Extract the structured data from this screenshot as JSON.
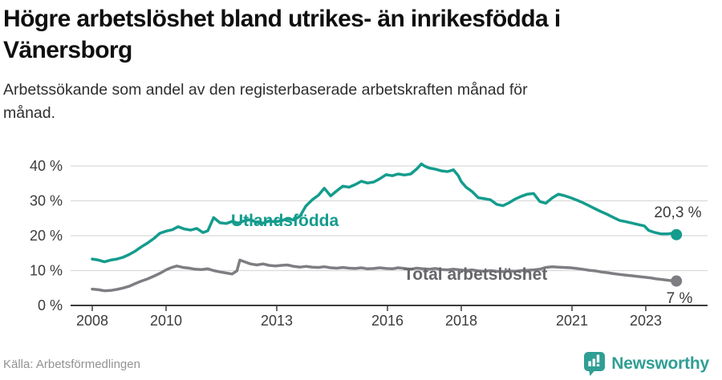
{
  "header": {
    "title_lines": [
      "Högre arbetslöshet bland utrikes- än inrikesfödda i",
      "Vänersborg"
    ],
    "subtitle_lines": [
      "Arbetssökande som andel av den registerbaserade arbetskraften månad för",
      "månad."
    ]
  },
  "chart_data": {
    "type": "line",
    "title": "Högre arbetslöshet bland utrikes- än inrikesfödda i Vänersborg",
    "subtitle": "Arbetssökande som andel av den registerbaserade arbetskraften månad för månad.",
    "xlabel": "",
    "ylabel": "",
    "x_unit": "year (monthly series)",
    "y_unit": "%",
    "xlim": [
      2007.5,
      2024.2
    ],
    "ylim": [
      0,
      42
    ],
    "grid": "horizontal",
    "grid_color": "#dadada",
    "axis_color": "#3c3c3c",
    "tick_label_color": "#3c3c3c",
    "annotation_color": "#3a3a3a",
    "x_ticks": [
      {
        "year": 2008,
        "label": "2008"
      },
      {
        "year": 2010,
        "label": "2010"
      },
      {
        "year": 2013,
        "label": "2013"
      },
      {
        "year": 2016,
        "label": "2016"
      },
      {
        "year": 2018,
        "label": "2018"
      },
      {
        "year": 2021,
        "label": "2021"
      },
      {
        "year": 2023,
        "label": "2023"
      }
    ],
    "y_ticks": [
      {
        "value": 0,
        "label": "0 %"
      },
      {
        "value": 10,
        "label": "10 %"
      },
      {
        "value": 20,
        "label": "20 %"
      },
      {
        "value": 30,
        "label": "30 %"
      },
      {
        "value": 40,
        "label": "40 %"
      }
    ],
    "series": [
      {
        "name": "Utlandsfödda",
        "color": "#149c8d",
        "label_color": "#149c8d",
        "end_label": "20,3 %",
        "end_value": 20.3,
        "points": [
          [
            2008.0,
            13.3
          ],
          [
            2008.17,
            13.0
          ],
          [
            2008.33,
            12.5
          ],
          [
            2008.5,
            13.0
          ],
          [
            2008.67,
            13.3
          ],
          [
            2008.83,
            13.8
          ],
          [
            2009.0,
            14.6
          ],
          [
            2009.17,
            15.6
          ],
          [
            2009.33,
            16.8
          ],
          [
            2009.5,
            17.9
          ],
          [
            2009.67,
            19.2
          ],
          [
            2009.83,
            20.7
          ],
          [
            2010.0,
            21.3
          ],
          [
            2010.17,
            21.7
          ],
          [
            2010.33,
            22.6
          ],
          [
            2010.5,
            21.9
          ],
          [
            2010.67,
            21.6
          ],
          [
            2010.83,
            22.1
          ],
          [
            2011.0,
            20.9
          ],
          [
            2011.13,
            21.4
          ],
          [
            2011.29,
            25.2
          ],
          [
            2011.46,
            23.7
          ],
          [
            2011.63,
            23.5
          ],
          [
            2011.79,
            24.1
          ],
          [
            2011.96,
            23.6
          ],
          [
            2012.13,
            24.3
          ],
          [
            2012.29,
            24.6
          ],
          [
            2012.46,
            23.8
          ],
          [
            2012.63,
            23.6
          ],
          [
            2012.79,
            24.2
          ],
          [
            2012.96,
            24.0
          ],
          [
            2013.13,
            24.3
          ],
          [
            2013.29,
            24.9
          ],
          [
            2013.46,
            24.5
          ],
          [
            2013.63,
            25.6
          ],
          [
            2013.79,
            28.5
          ],
          [
            2013.96,
            30.3
          ],
          [
            2014.13,
            31.6
          ],
          [
            2014.29,
            33.6
          ],
          [
            2014.46,
            31.4
          ],
          [
            2014.63,
            32.9
          ],
          [
            2014.79,
            34.2
          ],
          [
            2014.96,
            33.9
          ],
          [
            2015.13,
            34.7
          ],
          [
            2015.29,
            35.6
          ],
          [
            2015.46,
            35.1
          ],
          [
            2015.63,
            35.4
          ],
          [
            2015.79,
            36.3
          ],
          [
            2015.96,
            37.5
          ],
          [
            2016.13,
            37.2
          ],
          [
            2016.29,
            37.7
          ],
          [
            2016.46,
            37.4
          ],
          [
            2016.63,
            37.7
          ],
          [
            2016.79,
            39.1
          ],
          [
            2016.92,
            40.6
          ],
          [
            2017.0,
            40.0
          ],
          [
            2017.13,
            39.4
          ],
          [
            2017.29,
            39.1
          ],
          [
            2017.46,
            38.6
          ],
          [
            2017.63,
            38.4
          ],
          [
            2017.79,
            38.9
          ],
          [
            2017.92,
            37.2
          ],
          [
            2018.0,
            35.5
          ],
          [
            2018.13,
            33.9
          ],
          [
            2018.29,
            32.7
          ],
          [
            2018.46,
            30.9
          ],
          [
            2018.63,
            30.6
          ],
          [
            2018.79,
            30.3
          ],
          [
            2018.96,
            29.0
          ],
          [
            2019.13,
            28.6
          ],
          [
            2019.29,
            29.4
          ],
          [
            2019.46,
            30.5
          ],
          [
            2019.63,
            31.3
          ],
          [
            2019.79,
            31.9
          ],
          [
            2019.96,
            32.1
          ],
          [
            2020.13,
            29.8
          ],
          [
            2020.29,
            29.3
          ],
          [
            2020.46,
            30.8
          ],
          [
            2020.63,
            31.9
          ],
          [
            2020.79,
            31.5
          ],
          [
            2020.96,
            30.9
          ],
          [
            2021.13,
            30.2
          ],
          [
            2021.29,
            29.5
          ],
          [
            2021.46,
            28.6
          ],
          [
            2021.63,
            27.7
          ],
          [
            2021.79,
            26.9
          ],
          [
            2021.96,
            26.1
          ],
          [
            2022.13,
            25.2
          ],
          [
            2022.29,
            24.4
          ],
          [
            2022.46,
            24.0
          ],
          [
            2022.63,
            23.6
          ],
          [
            2022.79,
            23.2
          ],
          [
            2022.96,
            22.8
          ],
          [
            2023.08,
            21.5
          ],
          [
            2023.25,
            20.9
          ],
          [
            2023.42,
            20.5
          ],
          [
            2023.58,
            20.5
          ],
          [
            2023.71,
            20.7
          ],
          [
            2023.83,
            20.3
          ]
        ]
      },
      {
        "name": "Total arbetslöshet",
        "color": "#7e7e82",
        "label_color": "#67676b",
        "end_label": "7 %",
        "end_value": 7.0,
        "points": [
          [
            2008.0,
            4.7
          ],
          [
            2008.17,
            4.5
          ],
          [
            2008.33,
            4.2
          ],
          [
            2008.5,
            4.3
          ],
          [
            2008.67,
            4.6
          ],
          [
            2008.83,
            5.0
          ],
          [
            2009.0,
            5.5
          ],
          [
            2009.17,
            6.3
          ],
          [
            2009.33,
            7.0
          ],
          [
            2009.5,
            7.6
          ],
          [
            2009.67,
            8.4
          ],
          [
            2009.83,
            9.2
          ],
          [
            2010.0,
            10.2
          ],
          [
            2010.13,
            10.8
          ],
          [
            2010.29,
            11.3
          ],
          [
            2010.46,
            10.9
          ],
          [
            2010.63,
            10.7
          ],
          [
            2010.79,
            10.4
          ],
          [
            2010.96,
            10.3
          ],
          [
            2011.13,
            10.5
          ],
          [
            2011.29,
            10.0
          ],
          [
            2011.46,
            9.6
          ],
          [
            2011.63,
            9.3
          ],
          [
            2011.79,
            9.0
          ],
          [
            2011.92,
            9.9
          ],
          [
            2012.0,
            13.0
          ],
          [
            2012.13,
            12.5
          ],
          [
            2012.29,
            11.9
          ],
          [
            2012.46,
            11.6
          ],
          [
            2012.63,
            11.9
          ],
          [
            2012.79,
            11.5
          ],
          [
            2012.96,
            11.3
          ],
          [
            2013.13,
            11.5
          ],
          [
            2013.29,
            11.6
          ],
          [
            2013.46,
            11.2
          ],
          [
            2013.63,
            11.0
          ],
          [
            2013.79,
            11.2
          ],
          [
            2013.96,
            11.0
          ],
          [
            2014.13,
            10.9
          ],
          [
            2014.29,
            11.1
          ],
          [
            2014.46,
            10.8
          ],
          [
            2014.63,
            10.7
          ],
          [
            2014.79,
            10.9
          ],
          [
            2014.96,
            10.7
          ],
          [
            2015.13,
            10.6
          ],
          [
            2015.29,
            10.8
          ],
          [
            2015.46,
            10.5
          ],
          [
            2015.63,
            10.6
          ],
          [
            2015.79,
            10.8
          ],
          [
            2015.96,
            10.6
          ],
          [
            2016.13,
            10.5
          ],
          [
            2016.29,
            10.8
          ],
          [
            2016.46,
            10.6
          ],
          [
            2016.63,
            10.4
          ],
          [
            2016.79,
            10.7
          ],
          [
            2016.96,
            10.5
          ],
          [
            2017.13,
            10.4
          ],
          [
            2017.29,
            10.6
          ],
          [
            2017.46,
            10.3
          ],
          [
            2017.63,
            10.2
          ],
          [
            2017.79,
            10.4
          ],
          [
            2017.96,
            10.2
          ],
          [
            2018.13,
            10.0
          ],
          [
            2018.29,
            10.2
          ],
          [
            2018.46,
            9.9
          ],
          [
            2018.63,
            9.8
          ],
          [
            2018.79,
            10.0
          ],
          [
            2018.96,
            9.8
          ],
          [
            2019.13,
            9.7
          ],
          [
            2019.29,
            9.9
          ],
          [
            2019.46,
            9.8
          ],
          [
            2019.63,
            10.0
          ],
          [
            2019.79,
            10.1
          ],
          [
            2019.96,
            10.2
          ],
          [
            2020.13,
            10.4
          ],
          [
            2020.29,
            10.9
          ],
          [
            2020.46,
            11.1
          ],
          [
            2020.63,
            11.0
          ],
          [
            2020.79,
            10.9
          ],
          [
            2020.96,
            10.8
          ],
          [
            2021.13,
            10.6
          ],
          [
            2021.29,
            10.4
          ],
          [
            2021.46,
            10.1
          ],
          [
            2021.63,
            9.9
          ],
          [
            2021.79,
            9.6
          ],
          [
            2021.96,
            9.4
          ],
          [
            2022.13,
            9.1
          ],
          [
            2022.29,
            8.9
          ],
          [
            2022.46,
            8.7
          ],
          [
            2022.63,
            8.5
          ],
          [
            2022.79,
            8.3
          ],
          [
            2022.96,
            8.1
          ],
          [
            2023.13,
            7.9
          ],
          [
            2023.29,
            7.6
          ],
          [
            2023.46,
            7.4
          ],
          [
            2023.63,
            7.2
          ],
          [
            2023.83,
            7.0
          ]
        ]
      }
    ]
  },
  "footer": {
    "source": "Källa: Arbetsförmedlingen",
    "brand": "Newsworthy",
    "brand_color": "#2f9e94"
  }
}
